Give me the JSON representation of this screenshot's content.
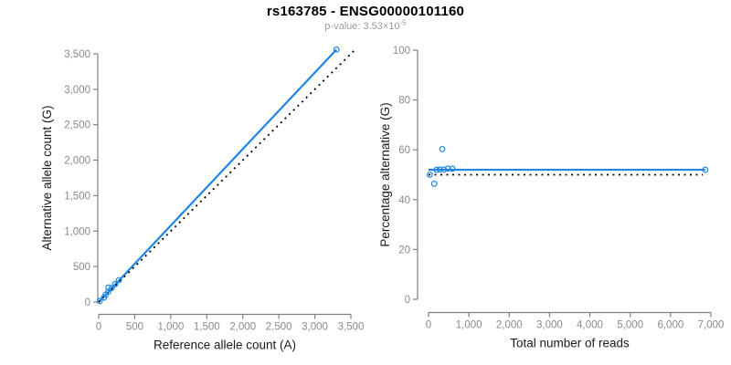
{
  "header": {
    "title": "rs163785 - ENSG00000101160",
    "subtitle_prefix": "p-value: 3.53×10",
    "subtitle_exponent": "-5"
  },
  "colors": {
    "accent_blue": "#1e86e6",
    "identity_black": "#000000",
    "axis_line_gray": "#808080",
    "tick_label_gray": "#8a8a8a",
    "axis_label_dark": "#1a1a1a"
  },
  "chart_data": [
    {
      "type": "scatter",
      "title": "",
      "xlabel": "Reference allele count (A)",
      "ylabel": "Alternative allele count (G)",
      "xlim": [
        0,
        3500
      ],
      "ylim": [
        0,
        3500
      ],
      "xticks": [
        0,
        500,
        1000,
        1500,
        2000,
        2500,
        3000,
        3500
      ],
      "yticks": [
        0,
        500,
        1000,
        1500,
        2000,
        2500,
        3000,
        3500
      ],
      "grid": false,
      "legend": "none",
      "points": [
        [
          15,
          15
        ],
        [
          75,
          65
        ],
        [
          96,
          104
        ],
        [
          134,
          146
        ],
        [
          135,
          205
        ],
        [
          182,
          198
        ],
        [
          228,
          252
        ],
        [
          281,
          309
        ],
        [
          3300,
          3560
        ]
      ],
      "lines": [
        {
          "name": "fit-line",
          "style": "solid",
          "color_key": "accent_blue",
          "x1": 0,
          "y1": 0,
          "x2": 3300,
          "y2": 3560
        },
        {
          "name": "identity-line",
          "style": "dotted",
          "color_key": "identity_black",
          "x1": 0,
          "y1": 0,
          "x2": 3545,
          "y2": 3545
        }
      ]
    },
    {
      "type": "scatter",
      "title": "",
      "xlabel": "Total number of reads",
      "ylabel": "Percentage alternative (G)",
      "xlim": [
        0,
        7000
      ],
      "ylim": [
        0,
        100
      ],
      "xticks": [
        0,
        1000,
        2000,
        3000,
        4000,
        5000,
        6000,
        7000
      ],
      "yticks": [
        0,
        20,
        40,
        60,
        80,
        100
      ],
      "grid": false,
      "legend": "none",
      "points": [
        [
          30,
          50.0
        ],
        [
          140,
          46.4
        ],
        [
          200,
          52.0
        ],
        [
          280,
          52.1
        ],
        [
          340,
          60.3
        ],
        [
          380,
          52.1
        ],
        [
          480,
          52.5
        ],
        [
          590,
          52.4
        ],
        [
          6860,
          52.0
        ]
      ],
      "lines": [
        {
          "name": "fit-line",
          "style": "solid",
          "color_key": "accent_blue",
          "x1": 0,
          "y1": 52.0,
          "x2": 6860,
          "y2": 52.0
        },
        {
          "name": "expected-line",
          "style": "dotted",
          "color_key": "identity_black",
          "x1": 0,
          "y1": 50,
          "x2": 6800,
          "y2": 50
        }
      ]
    }
  ]
}
